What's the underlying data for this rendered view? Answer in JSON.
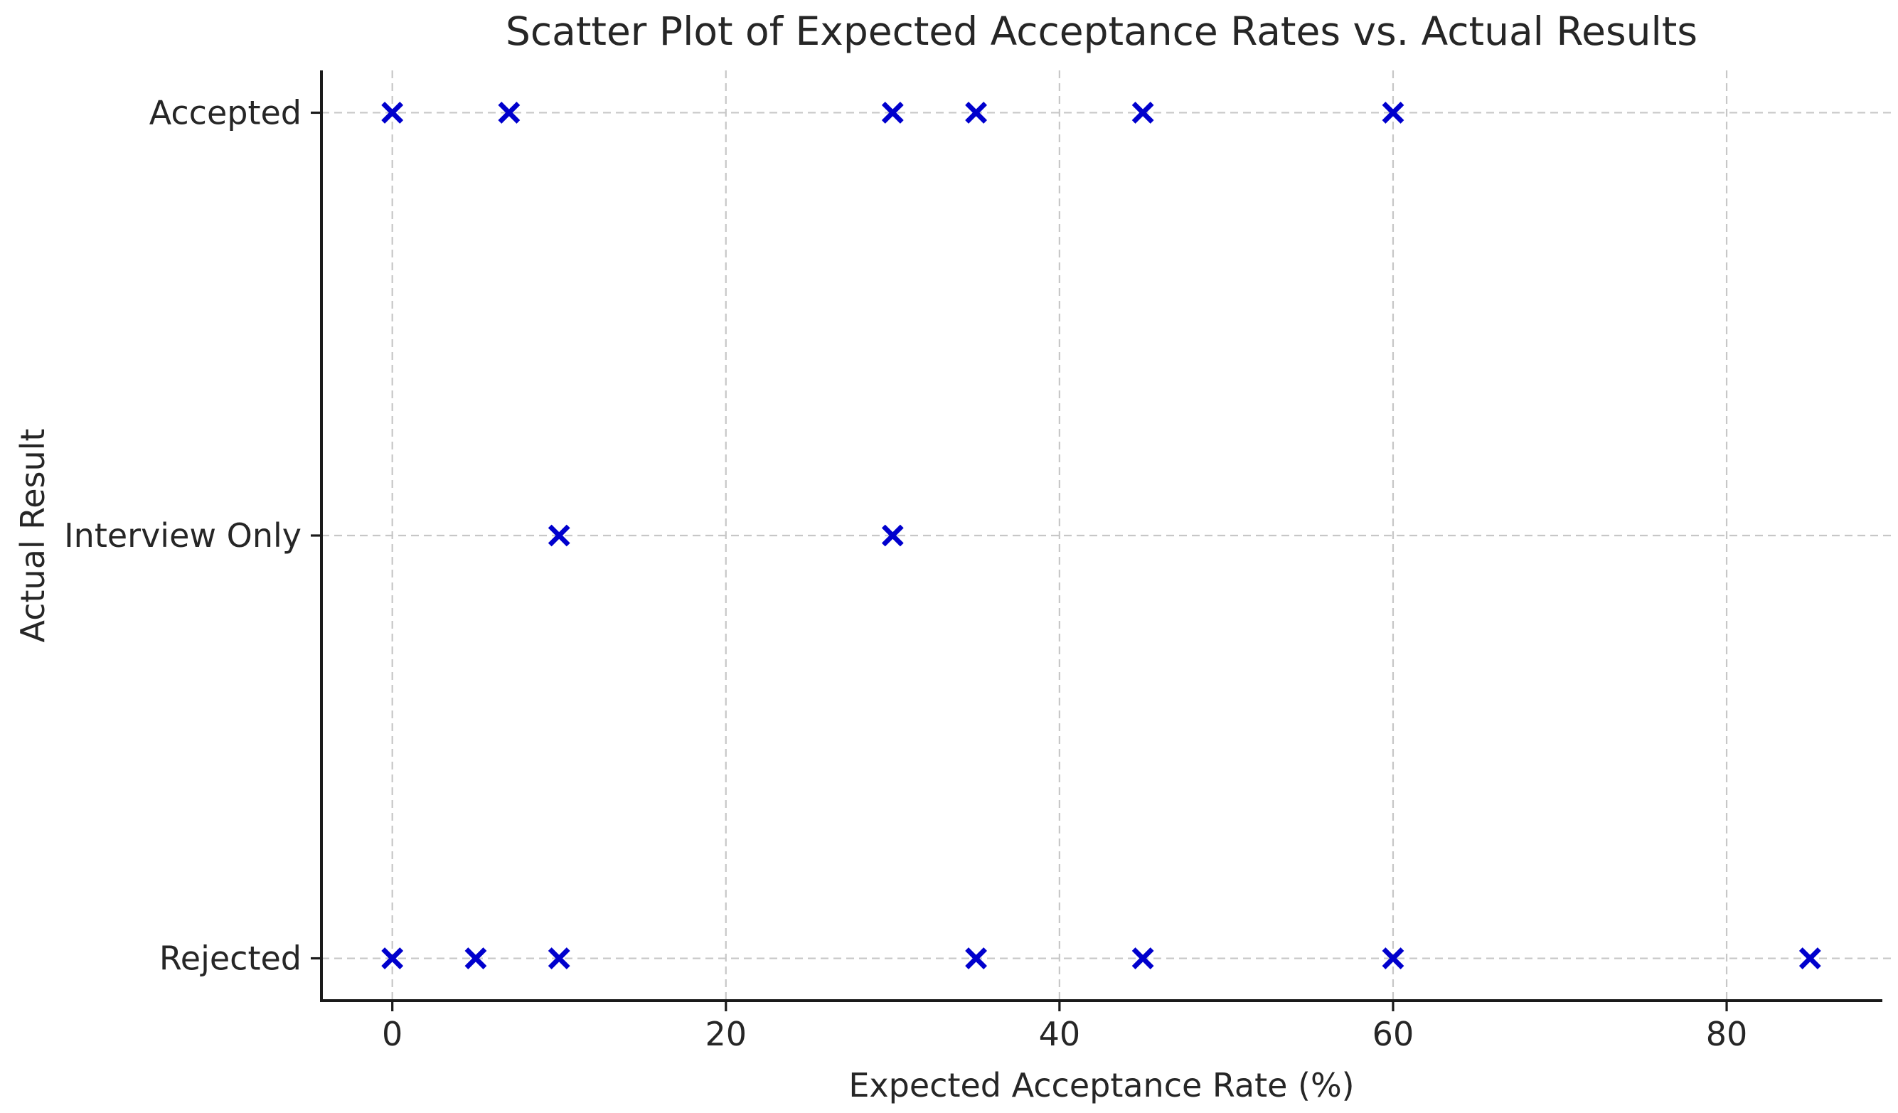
{
  "chart_data": {
    "type": "scatter",
    "title": "Scatter Plot of Expected Acceptance Rates vs. Actual Results",
    "xlabel": "Expected Acceptance Rate (%)",
    "ylabel": "Actual Result",
    "x_ticks": [
      0,
      20,
      40,
      60,
      80
    ],
    "xlim": [
      -4.25,
      89.25
    ],
    "y_categories": [
      "Rejected",
      "Interview Only",
      "Accepted"
    ],
    "ylim": [
      -0.1,
      2.1
    ],
    "grid": true,
    "grid_style": "dashed",
    "legend": "none",
    "marker": "x",
    "marker_color": "#0000CD",
    "points": [
      {
        "x": 0,
        "y": "Accepted"
      },
      {
        "x": 7,
        "y": "Accepted"
      },
      {
        "x": 30,
        "y": "Accepted"
      },
      {
        "x": 35,
        "y": "Accepted"
      },
      {
        "x": 45,
        "y": "Accepted"
      },
      {
        "x": 60,
        "y": "Accepted"
      },
      {
        "x": 10,
        "y": "Interview Only"
      },
      {
        "x": 30,
        "y": "Interview Only"
      },
      {
        "x": 0,
        "y": "Rejected"
      },
      {
        "x": 5,
        "y": "Rejected"
      },
      {
        "x": 10,
        "y": "Rejected"
      },
      {
        "x": 35,
        "y": "Rejected"
      },
      {
        "x": 45,
        "y": "Rejected"
      },
      {
        "x": 60,
        "y": "Rejected"
      },
      {
        "x": 85,
        "y": "Rejected"
      }
    ]
  }
}
